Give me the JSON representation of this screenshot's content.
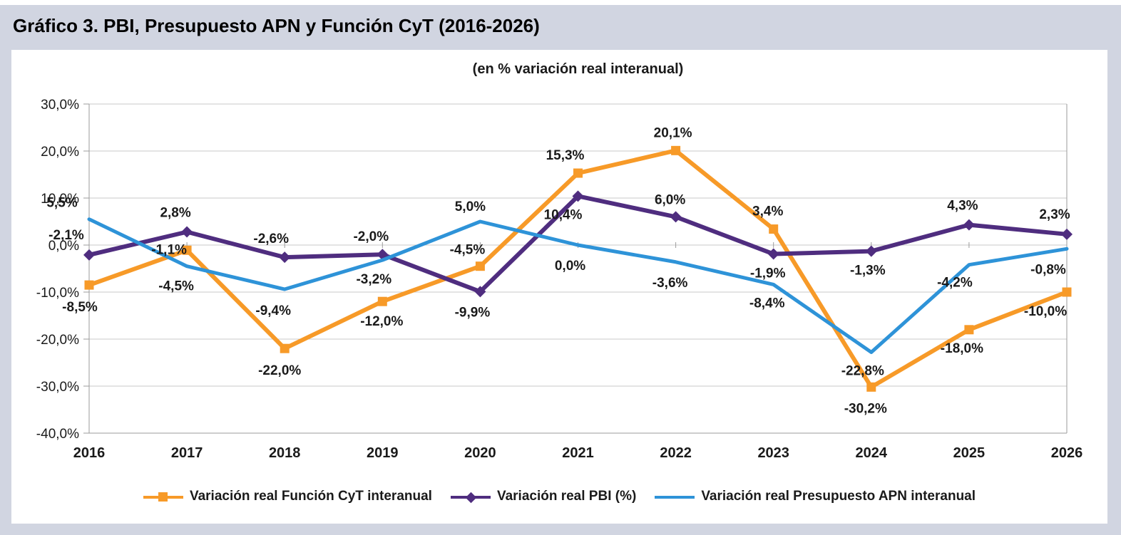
{
  "page": {
    "title": "Gráfico 3. PBI, Presupuesto APN y Función CyT (2016-2026)"
  },
  "chart_data": {
    "type": "line",
    "title": "Gráfico 3. PBI, Presupuesto APN y Función CyT (2016-2026)",
    "subtitle": "(en % variación real interanual)",
    "categories": [
      "2016",
      "2017",
      "2018",
      "2019",
      "2020",
      "2021",
      "2022",
      "2023",
      "2024",
      "2025",
      "2026"
    ],
    "y_axis": {
      "min": -40,
      "max": 30,
      "step": 10,
      "ticks": [
        "30,0%",
        "20,0%",
        "10,0%",
        "0,0%",
        "-10,0%",
        "-20,0%",
        "-30,0%",
        "-40,0%"
      ]
    },
    "grid": true,
    "legend_position": "bottom",
    "series": [
      {
        "name": "Variación real Función CyT interanual",
        "color": "#F79A28",
        "marker": "square",
        "values": [
          -8.5,
          -1.1,
          -22.0,
          -12.0,
          -4.5,
          15.3,
          20.1,
          3.4,
          -30.2,
          -18.0,
          -10.0
        ],
        "labels": [
          "-8,5%",
          "-1,1%",
          "-22,0%",
          "-12,0%",
          "-4,5%",
          "15,3%",
          "20,1%",
          "3,4%",
          "-30,2%",
          "-18,0%",
          "-10,0%"
        ],
        "label_offsets": [
          [
            -13,
            30
          ],
          [
            -25,
            -2
          ],
          [
            -7,
            30
          ],
          [
            -1,
            27
          ],
          [
            -18,
            -24
          ],
          [
            -18,
            -26
          ],
          [
            -4,
            -26
          ],
          [
            -8,
            -26
          ],
          [
            -8,
            29
          ],
          [
            -10,
            25
          ],
          [
            -30,
            26
          ]
        ]
      },
      {
        "name": "Variación real PBI (%)",
        "color": "#4F2D7F",
        "marker": "diamond",
        "values": [
          -2.1,
          2.8,
          -2.6,
          -2.0,
          -9.9,
          10.4,
          6.0,
          -1.9,
          -1.3,
          4.3,
          2.3
        ],
        "labels": [
          "-2,1%",
          "2,8%",
          "-2,6%",
          "-2,0%",
          "-9,9%",
          "10,4%",
          "6,0%",
          "-1,9%",
          "-1,3%",
          "4,3%",
          "2,3%"
        ],
        "label_offsets": [
          [
            -32,
            -29
          ],
          [
            -16,
            -28
          ],
          [
            -19,
            -27
          ],
          [
            -16,
            -26
          ],
          [
            -11,
            28
          ],
          [
            -21,
            25
          ],
          [
            -8,
            -25
          ],
          [
            -8,
            26
          ],
          [
            -5,
            26
          ],
          [
            -9,
            -28
          ],
          [
            -17,
            -29
          ]
        ]
      },
      {
        "name": "Variación real Presupuesto APN interanual",
        "color": "#2E93D8",
        "marker": "none",
        "values": [
          5.5,
          -4.5,
          -9.4,
          -3.2,
          5.0,
          0.0,
          -3.6,
          -8.4,
          -22.8,
          -4.2,
          -0.8
        ],
        "labels": [
          "5,5%",
          "-4,5%",
          "-9,4%",
          "-3,2%",
          "5,0%",
          "0,0%",
          "-3,6%",
          "-8,4%",
          "-22,8%",
          "-4,2%",
          "-0,8%"
        ],
        "label_offsets": [
          [
            -38,
            -24
          ],
          [
            -15,
            27
          ],
          [
            -16,
            29
          ],
          [
            -12,
            26
          ],
          [
            -14,
            -22
          ],
          [
            -11,
            28
          ],
          [
            -8,
            28
          ],
          [
            -9,
            25
          ],
          [
            -12,
            25
          ],
          [
            -20,
            24
          ],
          [
            -26,
            28
          ]
        ]
      }
    ],
    "colors": {
      "background_outer": "#d1d5e1",
      "background_panel": "#ffffff",
      "gridline": "#c9c9c9",
      "axis": "#9b9b9b",
      "label_text": "#1a1a1a"
    }
  }
}
